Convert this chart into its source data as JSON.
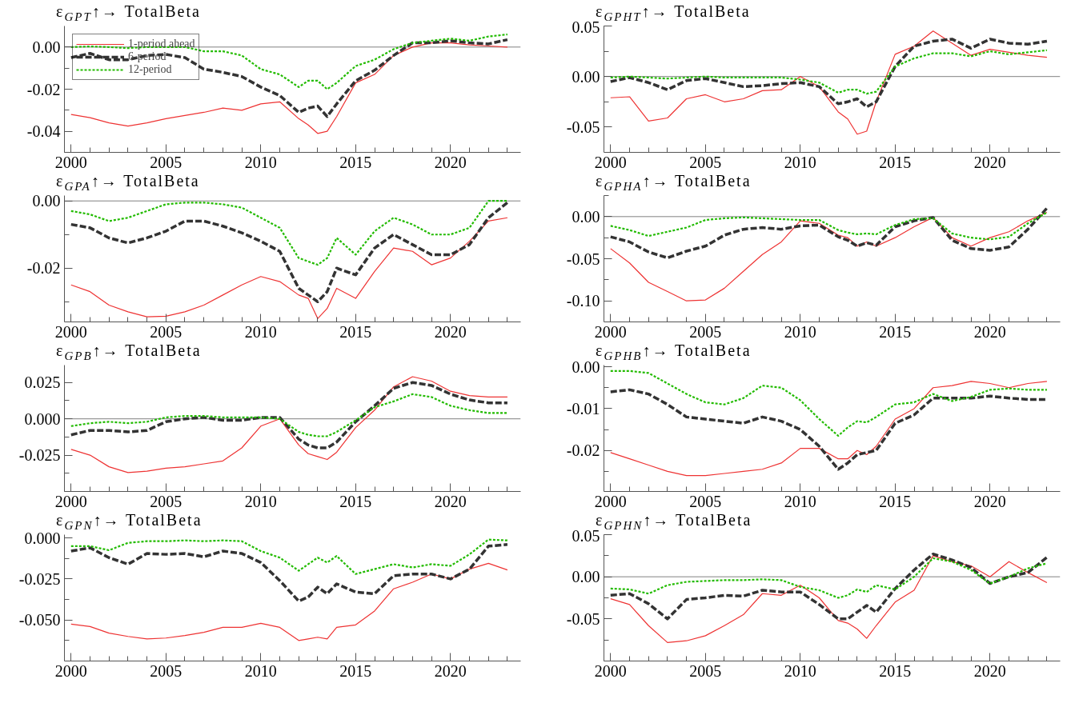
{
  "chart_data": [
    {
      "type": "line",
      "title": "ε$_{GPT}$↑→ TotalBeta",
      "legend": "top left",
      "grid": false,
      "xlim": [
        1999.65,
        2023.7
      ],
      "xticks": [
        2000,
        2005,
        2010,
        2015,
        2020
      ],
      "ylim": [
        -0.05,
        0.01
      ],
      "yticks": [
        {
          "value": -0.04,
          "label": "-0.04"
        },
        {
          "value": -0.02,
          "label": "-0.02"
        },
        {
          "value": 0,
          "label": "0.00"
        }
      ],
      "ref_lines": [
        {
          "axis": "y",
          "value": 0,
          "color": "#808080"
        }
      ],
      "x": [
        2000,
        2001,
        2002,
        2003,
        2004,
        2005,
        2006,
        2007,
        2008,
        2009,
        2010,
        2011,
        2012,
        2012.5,
        2013,
        2013.5,
        2014,
        2015,
        2016,
        2017,
        2018,
        2019,
        2020,
        2021,
        2022,
        2023
      ],
      "series": [
        {
          "name": "1-period ahead",
          "color": "#ee3333",
          "line_style": "solid",
          "values": [
            -0.032,
            -0.0335,
            -0.036,
            -0.0375,
            -0.036,
            -0.034,
            -0.0325,
            -0.031,
            -0.029,
            -0.03,
            -0.027,
            -0.026,
            -0.034,
            -0.037,
            -0.041,
            -0.04,
            -0.033,
            -0.017,
            -0.013,
            -0.004,
            0.0,
            0.002,
            0.002,
            0.001,
            0.0005,
            0.0
          ]
        },
        {
          "name": "6-period",
          "color": "#333333",
          "line_style": "dashed",
          "values": [
            -0.005,
            -0.003,
            -0.006,
            -0.006,
            -0.004,
            -0.0035,
            -0.005,
            -0.0105,
            -0.012,
            -0.014,
            -0.019,
            -0.023,
            -0.031,
            -0.029,
            -0.028,
            -0.033,
            -0.027,
            -0.016,
            -0.011,
            -0.004,
            0.002,
            0.002,
            0.003,
            0.002,
            0.0015,
            0.0035
          ]
        },
        {
          "name": "12-period",
          "color": "#22bb00",
          "line_style": "dotted",
          "values": [
            0.0,
            0.0003,
            0.0,
            -0.0005,
            0.0,
            0.0,
            0.0,
            -0.002,
            -0.002,
            -0.004,
            -0.0105,
            -0.013,
            -0.019,
            -0.016,
            -0.016,
            -0.02,
            -0.017,
            -0.009,
            -0.006,
            -0.001,
            0.002,
            0.003,
            0.004,
            0.003,
            0.005,
            0.006
          ]
        }
      ]
    },
    {
      "type": "line",
      "title": "ε$_{GPHT}$↑→ TotalBeta",
      "grid": false,
      "xlim": [
        1999.65,
        2023.7
      ],
      "xticks": [
        2000,
        2005,
        2010,
        2015,
        2020
      ],
      "ylim": [
        -0.075,
        0.05
      ],
      "yticks": [
        {
          "value": -0.05,
          "label": "-0.05"
        },
        {
          "value": 0,
          "label": "0.00"
        },
        {
          "value": 0.05,
          "label": "0.05"
        }
      ],
      "ref_lines": [
        {
          "axis": "y",
          "value": 0,
          "color": "#808080"
        }
      ],
      "x": [
        2000,
        2001,
        2002,
        2003,
        2004,
        2005,
        2006,
        2007,
        2008,
        2009,
        2010,
        2011,
        2012,
        2012.5,
        2013,
        2013.5,
        2014,
        2015,
        2016,
        2017,
        2018,
        2019,
        2020,
        2021,
        2022,
        2023
      ],
      "series": [
        {
          "color": "#ee3333",
          "line_style": "solid",
          "values": [
            -0.021,
            -0.02,
            -0.044,
            -0.041,
            -0.022,
            -0.018,
            -0.025,
            -0.022,
            -0.014,
            -0.013,
            0.0,
            -0.01,
            -0.035,
            -0.042,
            -0.057,
            -0.054,
            -0.025,
            0.022,
            0.03,
            0.045,
            0.033,
            0.021,
            0.027,
            0.024,
            0.021,
            0.019
          ]
        },
        {
          "color": "#333333",
          "line_style": "dashed",
          "values": [
            -0.005,
            -0.001,
            -0.006,
            -0.013,
            -0.004,
            -0.002,
            -0.006,
            -0.01,
            -0.009,
            -0.007,
            -0.006,
            -0.01,
            -0.027,
            -0.025,
            -0.022,
            -0.03,
            -0.025,
            0.01,
            0.03,
            0.035,
            0.037,
            0.028,
            0.037,
            0.033,
            0.032,
            0.035
          ]
        },
        {
          "color": "#22bb00",
          "line_style": "dotted",
          "values": [
            -0.001,
            0.0,
            -0.001,
            -0.002,
            -0.001,
            0.0,
            -0.001,
            -0.001,
            -0.001,
            -0.001,
            -0.003,
            -0.006,
            -0.016,
            -0.013,
            -0.013,
            -0.017,
            -0.015,
            0.01,
            0.018,
            0.023,
            0.023,
            0.02,
            0.025,
            0.022,
            0.024,
            0.026
          ]
        }
      ]
    },
    {
      "type": "line",
      "title": "ε$_{GPA}$↑→ TotalBeta",
      "grid": false,
      "xlim": [
        1999.65,
        2023.7
      ],
      "xticks": [
        2000,
        2005,
        2010,
        2015,
        2020
      ],
      "ylim": [
        -0.036,
        0.0016
      ],
      "yticks": [
        {
          "value": -0.02,
          "label": "-0.02"
        },
        {
          "value": 0,
          "label": "0.00"
        }
      ],
      "ref_lines": [
        {
          "axis": "y",
          "value": 0,
          "color": "#808080"
        }
      ],
      "x": [
        2000,
        2001,
        2002,
        2003,
        2004,
        2005,
        2006,
        2007,
        2008,
        2009,
        2010,
        2011,
        2012,
        2012.5,
        2013,
        2013.5,
        2014,
        2015,
        2016,
        2017,
        2018,
        2019,
        2020,
        2021,
        2022,
        2023
      ],
      "series": [
        {
          "color": "#ee3333",
          "line_style": "solid",
          "values": [
            -0.025,
            -0.027,
            -0.031,
            -0.033,
            -0.0345,
            -0.0343,
            -0.033,
            -0.031,
            -0.028,
            -0.025,
            -0.0225,
            -0.024,
            -0.028,
            -0.029,
            -0.035,
            -0.032,
            -0.026,
            -0.029,
            -0.021,
            -0.014,
            -0.015,
            -0.019,
            -0.017,
            -0.012,
            -0.006,
            -0.005
          ]
        },
        {
          "color": "#333333",
          "line_style": "dashed",
          "values": [
            -0.007,
            -0.008,
            -0.011,
            -0.0125,
            -0.011,
            -0.009,
            -0.006,
            -0.006,
            -0.0075,
            -0.0095,
            -0.012,
            -0.015,
            -0.026,
            -0.028,
            -0.03,
            -0.027,
            -0.02,
            -0.022,
            -0.014,
            -0.01,
            -0.013,
            -0.016,
            -0.016,
            -0.013,
            -0.005,
            -0.0005
          ]
        },
        {
          "color": "#22bb00",
          "line_style": "dotted",
          "values": [
            -0.003,
            -0.004,
            -0.006,
            -0.005,
            -0.003,
            -0.001,
            -0.0005,
            -0.0005,
            -0.001,
            -0.002,
            -0.005,
            -0.008,
            -0.017,
            -0.018,
            -0.019,
            -0.017,
            -0.011,
            -0.016,
            -0.009,
            -0.005,
            -0.007,
            -0.01,
            -0.01,
            -0.008,
            0.0,
            0.0
          ]
        }
      ]
    },
    {
      "type": "line",
      "title": "ε$_{GPHA}$↑→ TotalBeta",
      "grid": false,
      "xlim": [
        1999.65,
        2023.7
      ],
      "xticks": [
        2000,
        2005,
        2010,
        2015,
        2020
      ],
      "ylim": [
        -0.125,
        0.025
      ],
      "yticks": [
        {
          "value": -0.1,
          "label": "-0.10"
        },
        {
          "value": -0.05,
          "label": "-0.05"
        },
        {
          "value": 0,
          "label": "0.00"
        }
      ],
      "ref_lines": [
        {
          "axis": "y",
          "value": 0,
          "color": "#808080"
        }
      ],
      "x": [
        2000,
        2001,
        2002,
        2003,
        2004,
        2005,
        2006,
        2007,
        2008,
        2009,
        2010,
        2011,
        2012,
        2012.5,
        2013,
        2013.5,
        2014,
        2015,
        2016,
        2017,
        2018,
        2019,
        2020,
        2021,
        2022,
        2023
      ],
      "series": [
        {
          "color": "#ee3333",
          "line_style": "solid",
          "values": [
            -0.038,
            -0.055,
            -0.078,
            -0.089,
            -0.1,
            -0.099,
            -0.085,
            -0.065,
            -0.045,
            -0.03,
            -0.005,
            -0.008,
            -0.022,
            -0.025,
            -0.035,
            -0.03,
            -0.035,
            -0.025,
            -0.012,
            -0.001,
            -0.025,
            -0.035,
            -0.025,
            -0.018,
            -0.005,
            0.005
          ]
        },
        {
          "color": "#333333",
          "line_style": "dashed",
          "values": [
            -0.024,
            -0.03,
            -0.042,
            -0.049,
            -0.041,
            -0.035,
            -0.022,
            -0.015,
            -0.013,
            -0.015,
            -0.011,
            -0.01,
            -0.024,
            -0.028,
            -0.035,
            -0.031,
            -0.034,
            -0.012,
            -0.005,
            -0.001,
            -0.028,
            -0.038,
            -0.04,
            -0.036,
            -0.015,
            0.01
          ]
        },
        {
          "color": "#22bb00",
          "line_style": "dotted",
          "values": [
            -0.011,
            -0.016,
            -0.023,
            -0.018,
            -0.013,
            -0.004,
            -0.002,
            -0.001,
            -0.002,
            -0.003,
            -0.004,
            -0.004,
            -0.016,
            -0.019,
            -0.021,
            -0.02,
            -0.021,
            -0.01,
            -0.003,
            -0.002,
            -0.02,
            -0.025,
            -0.027,
            -0.024,
            -0.008,
            0.005
          ]
        }
      ]
    },
    {
      "type": "line",
      "title": "ε$_{GPB}$↑→ TotalBeta",
      "grid": false,
      "xlim": [
        1999.65,
        2023.7
      ],
      "xticks": [
        2000,
        2005,
        2010,
        2015,
        2020
      ],
      "ylim": [
        -0.05,
        0.037
      ],
      "yticks": [
        {
          "value": -0.025,
          "label": "-0.025"
        },
        {
          "value": 0,
          "label": "0.000"
        },
        {
          "value": 0.025,
          "label": "0.025"
        }
      ],
      "ref_lines": [
        {
          "axis": "y",
          "value": 0,
          "color": "#808080"
        }
      ],
      "x": [
        2000,
        2001,
        2002,
        2003,
        2004,
        2005,
        2006,
        2007,
        2008,
        2009,
        2010,
        2011,
        2012,
        2012.5,
        2013,
        2013.5,
        2014,
        2015,
        2016,
        2017,
        2018,
        2019,
        2020,
        2021,
        2022,
        2023
      ],
      "series": [
        {
          "color": "#ee3333",
          "line_style": "solid",
          "values": [
            -0.021,
            -0.025,
            -0.033,
            -0.037,
            -0.036,
            -0.034,
            -0.033,
            -0.031,
            -0.029,
            -0.02,
            -0.005,
            0.0,
            -0.018,
            -0.024,
            -0.026,
            -0.028,
            -0.023,
            -0.006,
            0.006,
            0.022,
            0.029,
            0.026,
            0.019,
            0.016,
            0.015,
            0.015
          ]
        },
        {
          "color": "#333333",
          "line_style": "dashed",
          "values": [
            -0.011,
            -0.008,
            -0.008,
            -0.009,
            -0.008,
            -0.002,
            0.0,
            0.001,
            -0.001,
            -0.001,
            0.001,
            0.001,
            -0.014,
            -0.018,
            -0.02,
            -0.02,
            -0.016,
            -0.002,
            0.009,
            0.021,
            0.025,
            0.023,
            0.017,
            0.013,
            0.011,
            0.011
          ]
        },
        {
          "color": "#22bb00",
          "line_style": "dotted",
          "values": [
            -0.005,
            -0.003,
            -0.002,
            -0.003,
            -0.002,
            0.001,
            0.002,
            0.002,
            0.001,
            0.001,
            0.001,
            0.0,
            -0.009,
            -0.011,
            -0.012,
            -0.012,
            -0.009,
            -0.001,
            0.008,
            0.012,
            0.017,
            0.015,
            0.009,
            0.006,
            0.004,
            0.004
          ]
        }
      ]
    },
    {
      "type": "line",
      "title": "ε$_{GPHB}$↑→ TotalBeta",
      "grid": false,
      "xlim": [
        1999.65,
        2023.7
      ],
      "xticks": [
        2000,
        2005,
        2010,
        2015,
        2020
      ],
      "ylim": [
        -0.0298,
        0.0004
      ],
      "yticks": [
        {
          "value": -0.02,
          "label": "-0.02"
        },
        {
          "value": -0.01,
          "label": "-0.01"
        },
        {
          "value": 0,
          "label": "0.00"
        }
      ],
      "x": [
        2000,
        2001,
        2002,
        2003,
        2004,
        2005,
        2006,
        2007,
        2008,
        2009,
        2010,
        2011,
        2012,
        2012.5,
        2013,
        2013.5,
        2014,
        2015,
        2016,
        2017,
        2018,
        2019,
        2020,
        2021,
        2022,
        2023
      ],
      "series": [
        {
          "color": "#ee3333",
          "line_style": "solid",
          "values": [
            -0.0205,
            -0.022,
            -0.0235,
            -0.025,
            -0.026,
            -0.026,
            -0.0255,
            -0.025,
            -0.0245,
            -0.023,
            -0.0195,
            -0.0195,
            -0.022,
            -0.022,
            -0.02,
            -0.021,
            -0.019,
            -0.0125,
            -0.01,
            -0.005,
            -0.0045,
            -0.0035,
            -0.004,
            -0.005,
            -0.004,
            -0.0035
          ]
        },
        {
          "color": "#333333",
          "line_style": "dashed",
          "values": [
            -0.006,
            -0.0055,
            -0.0065,
            -0.009,
            -0.012,
            -0.0125,
            -0.013,
            -0.0135,
            -0.012,
            -0.013,
            -0.015,
            -0.019,
            -0.0245,
            -0.023,
            -0.021,
            -0.0205,
            -0.02,
            -0.0135,
            -0.0115,
            -0.0075,
            -0.0075,
            -0.0075,
            -0.007,
            -0.0075,
            -0.0078,
            -0.0078
          ]
        },
        {
          "color": "#22bb00",
          "line_style": "dotted",
          "values": [
            -0.001,
            -0.001,
            -0.0015,
            -0.004,
            -0.0065,
            -0.0085,
            -0.009,
            -0.0075,
            -0.0045,
            -0.005,
            -0.008,
            -0.0125,
            -0.0165,
            -0.0145,
            -0.013,
            -0.0133,
            -0.012,
            -0.009,
            -0.0085,
            -0.0065,
            -0.0082,
            -0.0072,
            -0.0055,
            -0.0052,
            -0.0055,
            -0.0055
          ]
        }
      ]
    },
    {
      "type": "line",
      "title": "ε$_{GPN}$↑→ TotalBeta",
      "grid": false,
      "xlim": [
        1999.65,
        2023.7
      ],
      "xticks": [
        2000,
        2005,
        2010,
        2015,
        2020
      ],
      "ylim": [
        -0.075,
        0.002
      ],
      "yticks": [
        {
          "value": -0.05,
          "label": "-0.050"
        },
        {
          "value": -0.025,
          "label": "-0.025"
        },
        {
          "value": 0,
          "label": "0.000"
        }
      ],
      "x": [
        2000,
        2001,
        2002,
        2003,
        2004,
        2005,
        2006,
        2007,
        2008,
        2009,
        2010,
        2011,
        2012,
        2012.5,
        2013,
        2013.5,
        2014,
        2015,
        2016,
        2017,
        2018,
        2019,
        2020,
        2021,
        2022,
        2023
      ],
      "series": [
        {
          "color": "#ee3333",
          "line_style": "solid",
          "values": [
            -0.0525,
            -0.054,
            -0.058,
            -0.06,
            -0.0615,
            -0.061,
            -0.0595,
            -0.0575,
            -0.0545,
            -0.0545,
            -0.052,
            -0.0545,
            -0.0625,
            -0.0615,
            -0.0605,
            -0.0615,
            -0.0545,
            -0.053,
            -0.0445,
            -0.031,
            -0.027,
            -0.022,
            -0.025,
            -0.019,
            -0.0155,
            -0.0195
          ]
        },
        {
          "color": "#333333",
          "line_style": "dashed",
          "values": [
            -0.008,
            -0.006,
            -0.012,
            -0.016,
            -0.0095,
            -0.01,
            -0.0095,
            -0.0115,
            -0.008,
            -0.0095,
            -0.015,
            -0.026,
            -0.0385,
            -0.036,
            -0.03,
            -0.034,
            -0.028,
            -0.033,
            -0.034,
            -0.023,
            -0.022,
            -0.022,
            -0.025,
            -0.019,
            -0.005,
            -0.004
          ]
        },
        {
          "color": "#22bb00",
          "line_style": "dotted",
          "values": [
            -0.005,
            -0.005,
            -0.0075,
            -0.003,
            -0.002,
            -0.002,
            -0.0015,
            -0.002,
            -0.0015,
            -0.002,
            -0.008,
            -0.012,
            -0.02,
            -0.016,
            -0.012,
            -0.015,
            -0.011,
            -0.022,
            -0.019,
            -0.016,
            -0.018,
            -0.016,
            -0.017,
            -0.01,
            -0.001,
            -0.0015
          ]
        }
      ]
    },
    {
      "type": "line",
      "title": "ε$_{GPHN}$↑→ TotalBeta",
      "grid": false,
      "xlim": [
        1999.65,
        2023.7
      ],
      "xticks": [
        2000,
        2005,
        2010,
        2015,
        2020
      ],
      "ylim": [
        -0.1,
        0.05
      ],
      "yticks": [
        {
          "value": -0.05,
          "label": "-0.05"
        },
        {
          "value": 0,
          "label": "0.00"
        },
        {
          "value": 0.05,
          "label": "0.05"
        }
      ],
      "ref_lines": [
        {
          "axis": "y",
          "value": 0,
          "color": "#808080"
        }
      ],
      "x": [
        2000,
        2001,
        2002,
        2003,
        2004,
        2005,
        2006,
        2007,
        2008,
        2009,
        2010,
        2011,
        2012,
        2012.5,
        2013,
        2013.5,
        2014,
        2015,
        2016,
        2017,
        2018,
        2019,
        2020,
        2021,
        2022,
        2023
      ],
      "series": [
        {
          "color": "#ee3333",
          "line_style": "solid",
          "values": [
            -0.026,
            -0.033,
            -0.058,
            -0.078,
            -0.076,
            -0.07,
            -0.058,
            -0.045,
            -0.02,
            -0.022,
            -0.01,
            -0.025,
            -0.052,
            -0.055,
            -0.062,
            -0.073,
            -0.058,
            -0.03,
            -0.016,
            0.025,
            0.018,
            0.013,
            0.0,
            0.018,
            0.005,
            -0.007
          ]
        },
        {
          "color": "#333333",
          "line_style": "dashed",
          "values": [
            -0.022,
            -0.02,
            -0.032,
            -0.05,
            -0.027,
            -0.025,
            -0.022,
            -0.023,
            -0.016,
            -0.018,
            -0.018,
            -0.033,
            -0.05,
            -0.05,
            -0.042,
            -0.034,
            -0.042,
            -0.014,
            0.008,
            0.027,
            0.02,
            0.011,
            -0.008,
            0.0,
            0.005,
            0.023
          ]
        },
        {
          "color": "#22bb00",
          "line_style": "dotted",
          "values": [
            -0.014,
            -0.015,
            -0.02,
            -0.01,
            -0.006,
            -0.005,
            -0.004,
            -0.004,
            -0.003,
            -0.004,
            -0.012,
            -0.016,
            -0.025,
            -0.022,
            -0.015,
            -0.018,
            -0.01,
            -0.015,
            0.0,
            0.022,
            0.018,
            0.008,
            -0.008,
            0.0,
            0.01,
            0.016
          ]
        }
      ]
    }
  ]
}
